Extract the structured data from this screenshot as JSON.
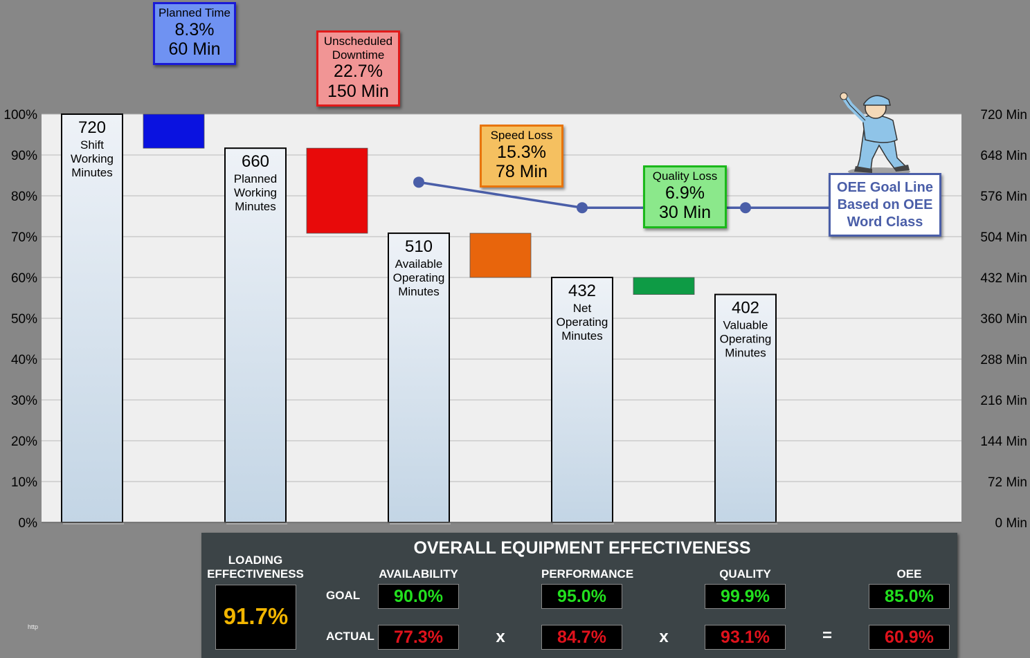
{
  "chart_data": {
    "type": "bar",
    "subtype": "waterfall",
    "ylim": [
      0,
      720
    ],
    "left_axis_ticks": [
      "0%",
      "10%",
      "20%",
      "30%",
      "40%",
      "50%",
      "60%",
      "70%",
      "80%",
      "90%",
      "100%"
    ],
    "right_axis_ticks": [
      "0 Min",
      "72 Min",
      "144 Min",
      "216 Min",
      "288 Min",
      "360 Min",
      "432 Min",
      "504 Min",
      "576 Min",
      "648 Min",
      "720 Min"
    ],
    "grid": true,
    "bars": [
      {
        "value": 720,
        "label_num": "720",
        "label_text": "Shift Working Minutes"
      },
      {
        "value": 660,
        "label_num": "660",
        "label_text": "Planned Working Minutes"
      },
      {
        "value": 510,
        "label_num": "510",
        "label_text": "Available Operating Minutes"
      },
      {
        "value": 432,
        "label_num": "432",
        "label_text": "Net Operating Minutes"
      },
      {
        "value": 402,
        "label_num": "402",
        "label_text": "Valuable Operating Minutes"
      }
    ],
    "losses": [
      {
        "from": 720,
        "to": 660,
        "color": "#0a12e0"
      },
      {
        "from": 660,
        "to": 510,
        "color": "#e80a0a"
      },
      {
        "from": 510,
        "to": 432,
        "color": "#e8650c"
      },
      {
        "from": 432,
        "to": 402,
        "color": "#0e9b45"
      }
    ],
    "goal_line": {
      "color": "#4a5ea8",
      "points": [
        {
          "bar_index": 2,
          "value": 600
        },
        {
          "bar_index": 3,
          "value": 555
        },
        {
          "bar_index": 4,
          "value": 555
        }
      ]
    }
  },
  "callouts": {
    "planned": {
      "title": "Planned Time",
      "pct": "8.3%",
      "min": "60 Min",
      "bg": "#6f92f2",
      "border": "#1a1ad6"
    },
    "unscheduled": {
      "title1": "Unscheduled",
      "title2": "Downtime",
      "pct": "22.7%",
      "min": "150 Min",
      "bg": "#f19595",
      "border": "#e01a1a"
    },
    "speed": {
      "title": "Speed  Loss",
      "pct": "15.3%",
      "min": "78 Min",
      "bg": "#f5c060",
      "border": "#e8740c"
    },
    "quality": {
      "title": "Quality  Loss",
      "pct": "6.9%",
      "min": "30 Min",
      "bg": "#8be88b",
      "border": "#1ab81a"
    },
    "goal": {
      "line1": "OEE Goal Line",
      "line2": "Based on OEE",
      "line3": "Word Class",
      "border": "#4a5ea8",
      "text_color": "#4a5ea8"
    }
  },
  "panel": {
    "title": "OVERALL EQUIPMENT EFFECTIVENESS",
    "loading_label1": "LOADING",
    "loading_label2": "EFFECTIVENESS",
    "loading_value": "91.7%",
    "goal_label": "GOAL",
    "actual_label": "ACTUAL",
    "columns": [
      {
        "header": "AVAILABILITY",
        "goal": "90.0%",
        "actual": "77.3%"
      },
      {
        "header": "PERFORMANCE",
        "goal": "95.0%",
        "actual": "84.7%"
      },
      {
        "header": "QUALITY",
        "goal": "99.9%",
        "actual": "93.1%"
      },
      {
        "header": "OEE",
        "goal": "85.0%",
        "actual": "60.9%"
      }
    ],
    "op_x": "x",
    "op_eq": "="
  },
  "watermark": "http"
}
